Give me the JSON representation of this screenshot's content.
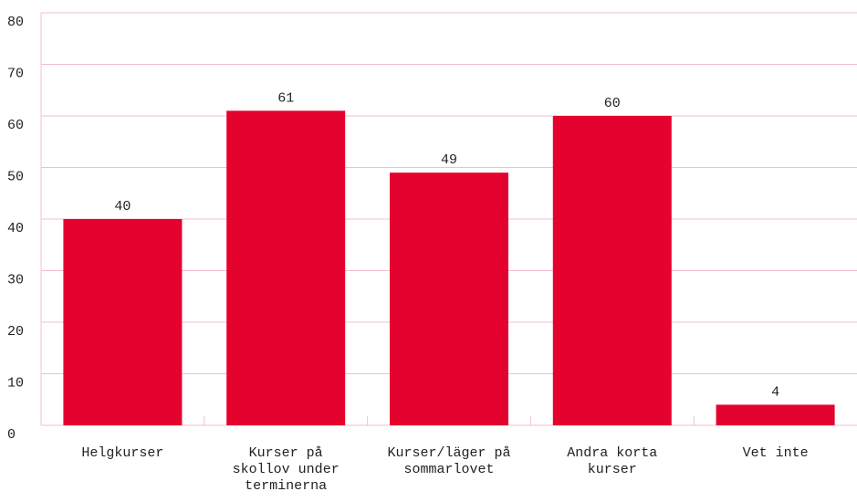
{
  "chart_data": {
    "type": "bar",
    "categories": [
      "Helgkurser",
      "Kurser på skollov under terminerna",
      "Kurser/läger på sommarlovet",
      "Andra korta kurser",
      "Vet inte"
    ],
    "values": [
      40,
      61,
      49,
      60,
      4
    ],
    "color": "#e4032e",
    "ylim": [
      0,
      80
    ],
    "yticks": [
      0,
      10,
      20,
      30,
      40,
      50,
      60,
      70,
      80
    ],
    "grid": true
  }
}
